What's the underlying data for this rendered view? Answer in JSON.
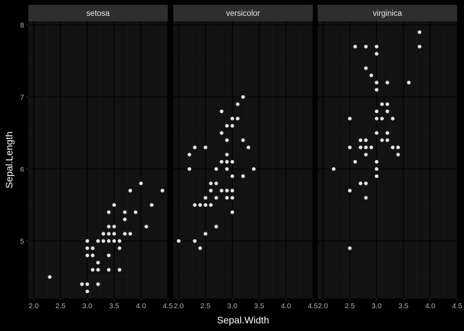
{
  "chart_data": {
    "type": "scatter",
    "xlabel": "Sepal.Width",
    "ylabel": "Sepal.Length",
    "xlim": [
      1.9,
      4.5
    ],
    "ylim": [
      4.2,
      8.05
    ],
    "x_ticks": [
      "2.0",
      "2.5",
      "3.0",
      "3.5",
      "4.0",
      "4.5"
    ],
    "x_tick_values": [
      2.0,
      2.5,
      3.0,
      3.5,
      4.0,
      4.5
    ],
    "y_ticks": [
      "5",
      "6",
      "7",
      "8"
    ],
    "y_tick_values": [
      5,
      6,
      7,
      8
    ],
    "grid": true,
    "legend": "none",
    "colors": {
      "background": "#000000",
      "panel": "#121212",
      "strip": "#2e2e2e",
      "grid_major": "#000000",
      "grid_minor": "#1c1c1c",
      "point": "#e6e6e6"
    },
    "panels": [
      {
        "name": "setosa",
        "points": [
          [
            2.3,
            4.5
          ],
          [
            2.9,
            4.4
          ],
          [
            3.0,
            4.3
          ],
          [
            3.0,
            4.4
          ],
          [
            3.0,
            4.8
          ],
          [
            3.0,
            4.9
          ],
          [
            3.0,
            5.0
          ],
          [
            3.1,
            4.6
          ],
          [
            3.1,
            4.8
          ],
          [
            3.1,
            4.9
          ],
          [
            3.2,
            4.4
          ],
          [
            3.2,
            4.6
          ],
          [
            3.2,
            4.7
          ],
          [
            3.2,
            5.0
          ],
          [
            3.3,
            5.0
          ],
          [
            3.3,
            5.1
          ],
          [
            3.4,
            4.6
          ],
          [
            3.4,
            4.8
          ],
          [
            3.4,
            5.0
          ],
          [
            3.4,
            5.1
          ],
          [
            3.4,
            5.2
          ],
          [
            3.4,
            5.4
          ],
          [
            3.5,
            5.0
          ],
          [
            3.5,
            5.1
          ],
          [
            3.5,
            5.2
          ],
          [
            3.5,
            5.5
          ],
          [
            3.6,
            4.6
          ],
          [
            3.6,
            4.9
          ],
          [
            3.6,
            5.0
          ],
          [
            3.7,
            5.1
          ],
          [
            3.7,
            5.3
          ],
          [
            3.7,
            5.4
          ],
          [
            3.8,
            5.1
          ],
          [
            3.8,
            5.7
          ],
          [
            3.9,
            5.4
          ],
          [
            4.0,
            5.8
          ],
          [
            4.1,
            5.2
          ],
          [
            4.2,
            5.5
          ],
          [
            4.4,
            5.7
          ]
        ]
      },
      {
        "name": "versicolor",
        "points": [
          [
            2.0,
            5.0
          ],
          [
            2.2,
            6.0
          ],
          [
            2.2,
            6.2
          ],
          [
            2.3,
            5.0
          ],
          [
            2.3,
            5.5
          ],
          [
            2.3,
            6.3
          ],
          [
            2.4,
            4.9
          ],
          [
            2.4,
            5.5
          ],
          [
            2.5,
            5.1
          ],
          [
            2.5,
            5.5
          ],
          [
            2.5,
            5.6
          ],
          [
            2.5,
            6.3
          ],
          [
            2.6,
            5.5
          ],
          [
            2.6,
            5.7
          ],
          [
            2.6,
            5.8
          ],
          [
            2.7,
            5.2
          ],
          [
            2.7,
            5.6
          ],
          [
            2.7,
            5.8
          ],
          [
            2.7,
            6.0
          ],
          [
            2.8,
            5.7
          ],
          [
            2.8,
            6.1
          ],
          [
            2.8,
            6.5
          ],
          [
            2.8,
            6.8
          ],
          [
            2.9,
            5.6
          ],
          [
            2.9,
            5.7
          ],
          [
            2.9,
            6.0
          ],
          [
            2.9,
            6.1
          ],
          [
            2.9,
            6.2
          ],
          [
            2.9,
            6.4
          ],
          [
            2.9,
            6.6
          ],
          [
            3.0,
            5.4
          ],
          [
            3.0,
            5.6
          ],
          [
            3.0,
            5.7
          ],
          [
            3.0,
            5.9
          ],
          [
            3.0,
            6.1
          ],
          [
            3.0,
            6.6
          ],
          [
            3.0,
            6.7
          ],
          [
            3.1,
            6.7
          ],
          [
            3.1,
            6.9
          ],
          [
            3.2,
            5.9
          ],
          [
            3.2,
            6.4
          ],
          [
            3.2,
            7.0
          ],
          [
            3.3,
            6.3
          ],
          [
            3.4,
            6.0
          ]
        ]
      },
      {
        "name": "virginica",
        "points": [
          [
            2.2,
            6.0
          ],
          [
            2.5,
            4.9
          ],
          [
            2.5,
            5.7
          ],
          [
            2.5,
            6.3
          ],
          [
            2.5,
            6.7
          ],
          [
            2.6,
            6.1
          ],
          [
            2.6,
            7.7
          ],
          [
            2.7,
            5.8
          ],
          [
            2.7,
            6.3
          ],
          [
            2.7,
            6.4
          ],
          [
            2.8,
            5.6
          ],
          [
            2.8,
            5.8
          ],
          [
            2.8,
            6.2
          ],
          [
            2.8,
            6.3
          ],
          [
            2.8,
            6.4
          ],
          [
            2.8,
            7.4
          ],
          [
            2.8,
            7.7
          ],
          [
            2.9,
            6.3
          ],
          [
            2.9,
            7.3
          ],
          [
            3.0,
            5.9
          ],
          [
            3.0,
            6.0
          ],
          [
            3.0,
            6.1
          ],
          [
            3.0,
            6.5
          ],
          [
            3.0,
            6.7
          ],
          [
            3.0,
            6.8
          ],
          [
            3.0,
            7.1
          ],
          [
            3.0,
            7.2
          ],
          [
            3.0,
            7.6
          ],
          [
            3.0,
            7.7
          ],
          [
            3.1,
            6.4
          ],
          [
            3.1,
            6.7
          ],
          [
            3.1,
            6.9
          ],
          [
            3.2,
            6.4
          ],
          [
            3.2,
            6.5
          ],
          [
            3.2,
            6.8
          ],
          [
            3.2,
            6.9
          ],
          [
            3.2,
            7.2
          ],
          [
            3.3,
            6.3
          ],
          [
            3.3,
            6.7
          ],
          [
            3.4,
            6.2
          ],
          [
            3.4,
            6.3
          ],
          [
            3.6,
            7.2
          ],
          [
            3.8,
            7.7
          ],
          [
            3.8,
            7.9
          ]
        ]
      }
    ]
  }
}
